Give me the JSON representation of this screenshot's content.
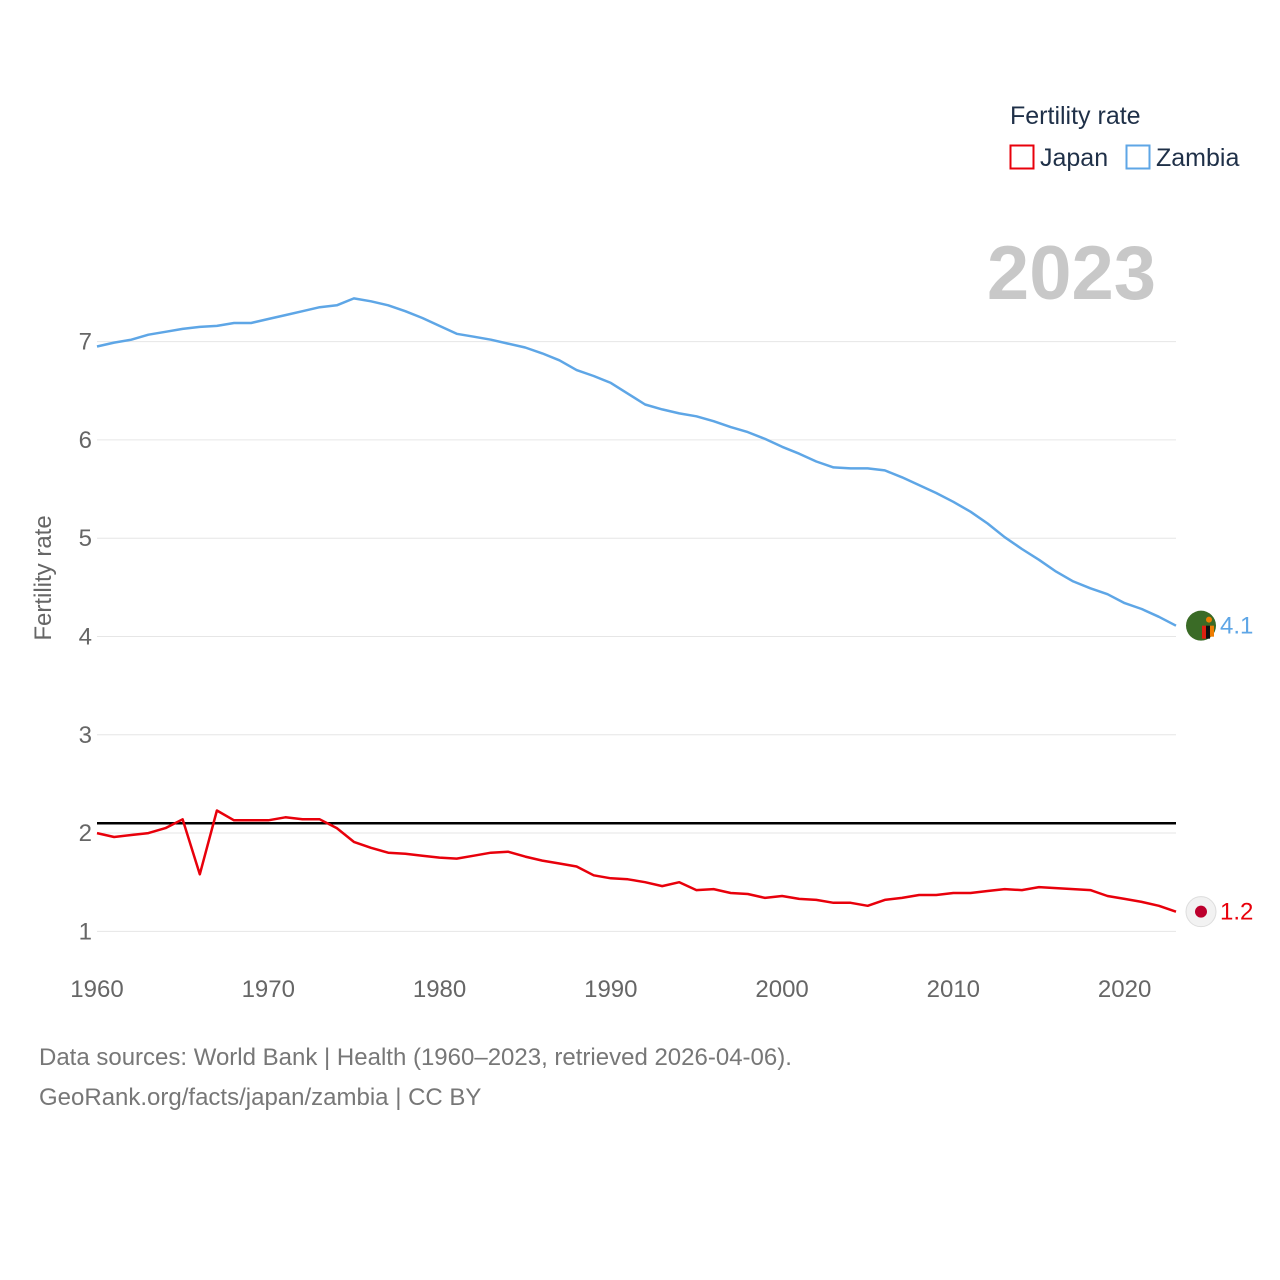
{
  "chart_data": {
    "type": "line",
    "ylabel": "Fertility rate",
    "xlabel": "",
    "xlim": [
      1960,
      2023
    ],
    "ylim": [
      0.8,
      7.8
    ],
    "xticks": [
      1960,
      1970,
      1980,
      1990,
      2000,
      2010,
      2020
    ],
    "yticks": [
      1,
      2,
      3,
      4,
      5,
      6,
      7
    ],
    "year_label": "2023",
    "reference_line": {
      "y": 2.1,
      "color": "#000000"
    },
    "legend": {
      "title": "Fertility rate",
      "position": "top-right"
    },
    "x": [
      1960,
      1961,
      1962,
      1963,
      1964,
      1965,
      1966,
      1967,
      1968,
      1969,
      1970,
      1971,
      1972,
      1973,
      1974,
      1975,
      1976,
      1977,
      1978,
      1979,
      1980,
      1981,
      1982,
      1983,
      1984,
      1985,
      1986,
      1987,
      1988,
      1989,
      1990,
      1991,
      1992,
      1993,
      1994,
      1995,
      1996,
      1997,
      1998,
      1999,
      2000,
      2001,
      2002,
      2003,
      2004,
      2005,
      2006,
      2007,
      2008,
      2009,
      2010,
      2011,
      2012,
      2013,
      2014,
      2015,
      2016,
      2017,
      2018,
      2019,
      2020,
      2021,
      2022,
      2023
    ],
    "series": [
      {
        "name": "Japan",
        "color": "#e8000b",
        "end_label": "1.2",
        "flag": "japan-flag",
        "values": [
          2.0,
          1.96,
          1.98,
          2.0,
          2.05,
          2.14,
          1.58,
          2.23,
          2.13,
          2.13,
          2.13,
          2.16,
          2.14,
          2.14,
          2.05,
          1.91,
          1.85,
          1.8,
          1.79,
          1.77,
          1.75,
          1.74,
          1.77,
          1.8,
          1.81,
          1.76,
          1.72,
          1.69,
          1.66,
          1.57,
          1.54,
          1.53,
          1.5,
          1.46,
          1.5,
          1.42,
          1.43,
          1.39,
          1.38,
          1.34,
          1.36,
          1.33,
          1.32,
          1.29,
          1.29,
          1.26,
          1.32,
          1.34,
          1.37,
          1.37,
          1.39,
          1.39,
          1.41,
          1.43,
          1.42,
          1.45,
          1.44,
          1.43,
          1.42,
          1.36,
          1.33,
          1.3,
          1.26,
          1.2
        ]
      },
      {
        "name": "Zambia",
        "color": "#5ea6e6",
        "end_label": "4.1",
        "flag": "zambia-flag",
        "values": [
          6.95,
          6.99,
          7.02,
          7.07,
          7.1,
          7.13,
          7.15,
          7.16,
          7.19,
          7.19,
          7.23,
          7.27,
          7.31,
          7.35,
          7.37,
          7.44,
          7.41,
          7.37,
          7.31,
          7.24,
          7.16,
          7.08,
          7.05,
          7.02,
          6.98,
          6.94,
          6.88,
          6.81,
          6.71,
          6.65,
          6.58,
          6.47,
          6.36,
          6.31,
          6.27,
          6.24,
          6.19,
          6.13,
          6.08,
          6.01,
          5.93,
          5.86,
          5.78,
          5.72,
          5.71,
          5.71,
          5.69,
          5.62,
          5.54,
          5.46,
          5.37,
          5.27,
          5.15,
          5.01,
          4.89,
          4.78,
          4.66,
          4.56,
          4.49,
          4.43,
          4.34,
          4.28,
          4.2,
          4.11
        ]
      }
    ]
  },
  "footer": {
    "line1": "Data sources: World Bank | Health (1960–2023, retrieved 2026-04-06).",
    "line2": "GeoRank.org/facts/japan/zambia | CC BY"
  }
}
